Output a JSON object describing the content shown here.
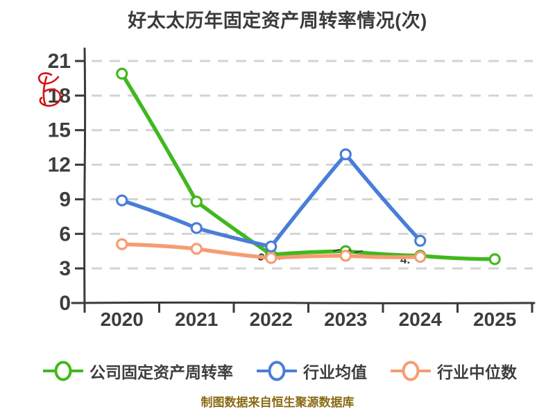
{
  "title": "好太太历年固定资产周转率情况(次)",
  "footer": "制图数据来自恒生聚源数据库",
  "colors": {
    "company": "#41b81e",
    "industry_avg": "#4a7dd8",
    "industry_median": "#f69c72",
    "axis": "#3a3a3a",
    "grid": "#d3d3d3",
    "title_text": "#3b3b3b",
    "footer_text": "#8b6a14",
    "watermark": "#d41111",
    "annotation": "#333333",
    "marker_fill": "#ffffff",
    "background": "#ffffff"
  },
  "icons": {
    "watermark": "red-scribble-mark",
    "legend_markers": [
      "green-circle-marker",
      "blue-circle-marker",
      "orange-circle-marker"
    ]
  },
  "annotations": {
    "partial_value_2024": "4."
  },
  "chart_data": {
    "type": "line",
    "title": "好太太历年固定资产周转率情况(次)",
    "xlabel": "",
    "ylabel": "",
    "categories": [
      "2020",
      "2021",
      "2022",
      "2023",
      "2024",
      "2025"
    ],
    "series": [
      {
        "name": "公司固定资产周转率",
        "color": "#41b81e",
        "values": [
          19.9,
          8.8,
          4.2,
          4.5,
          4.1,
          3.8
        ]
      },
      {
        "name": "行业均值",
        "color": "#4a7dd8",
        "values": [
          8.9,
          6.5,
          4.9,
          12.9,
          5.4,
          null
        ]
      },
      {
        "name": "行业中位数",
        "color": "#f69c72",
        "values": [
          5.1,
          4.7,
          3.9,
          4.1,
          4.0,
          null
        ]
      }
    ],
    "ylim": [
      0,
      21
    ],
    "yticks": [
      0,
      3,
      6,
      9,
      12,
      15,
      18,
      21
    ],
    "grid": "horizontal-dashed",
    "legend_position": "bottom",
    "style": "hand-drawn (xkcd-like), white-filled circle markers"
  }
}
